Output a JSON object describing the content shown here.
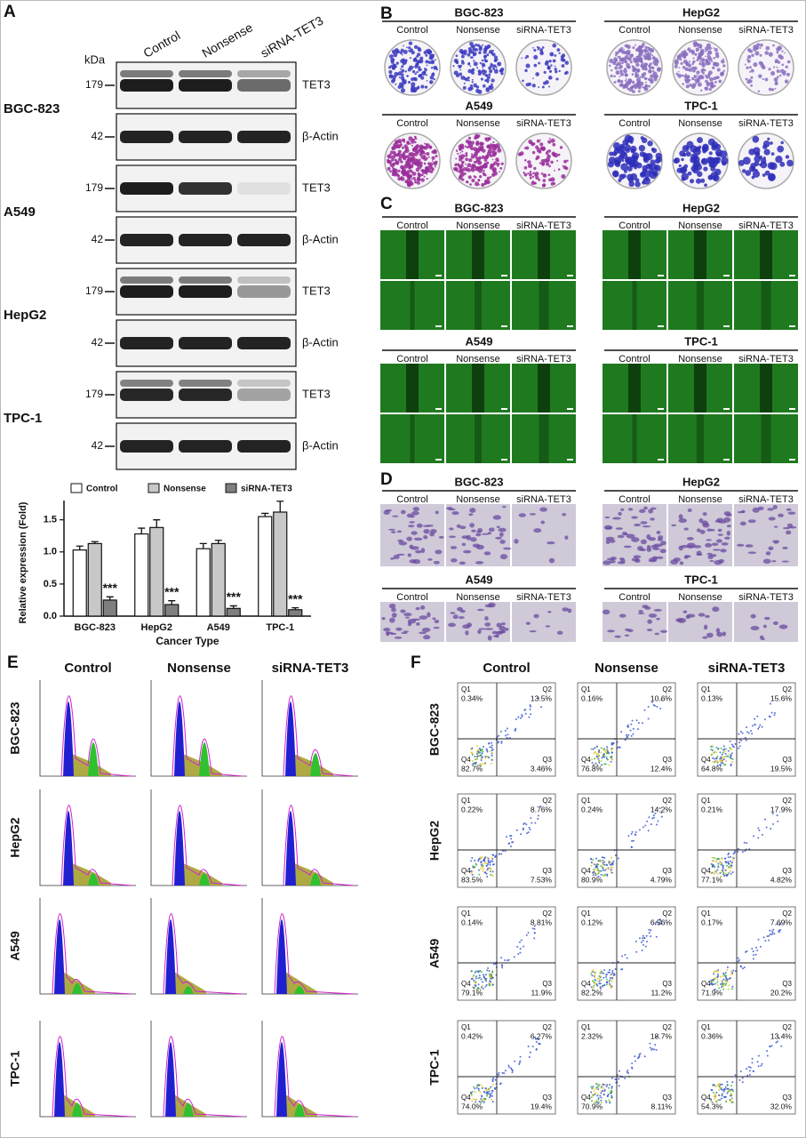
{
  "panel_labels": [
    "A",
    "B",
    "C",
    "D",
    "E",
    "F"
  ],
  "western_blot": {
    "kda_label": "kDa",
    "lanes": [
      "Control",
      "Nonsense",
      "siRNA-TET3"
    ],
    "rows": [
      {
        "cell_line": "BGC-823",
        "blots": [
          {
            "marker": "179",
            "protein": "TET3"
          },
          {
            "marker": "42",
            "protein": "β-Actin"
          }
        ]
      },
      {
        "cell_line": "A549",
        "blots": [
          {
            "marker": "179",
            "protein": "TET3"
          },
          {
            "marker": "42",
            "protein": "β-Actin"
          }
        ]
      },
      {
        "cell_line": "HepG2",
        "blots": [
          {
            "marker": "179",
            "protein": "TET3"
          },
          {
            "marker": "42",
            "protein": "β-Actin"
          }
        ]
      },
      {
        "cell_line": "TPC-1",
        "blots": [
          {
            "marker": "179",
            "protein": "TET3"
          },
          {
            "marker": "42",
            "protein": "β-Actin"
          }
        ]
      }
    ]
  },
  "chart_data": {
    "type": "bar",
    "y_label": "Relative expression (Fold)",
    "x_label": "Cancer Type",
    "categories": [
      "BGC-823",
      "HepG2",
      "A549",
      "TPC-1"
    ],
    "series": [
      {
        "name": "Control",
        "color": "#ffffff",
        "values": [
          1.03,
          1.28,
          1.05,
          1.55
        ],
        "errors": [
          0.06,
          0.09,
          0.08,
          0.05
        ]
      },
      {
        "name": "Nonsense",
        "color": "#c8c8c8",
        "values": [
          1.13,
          1.38,
          1.13,
          1.62
        ],
        "errors": [
          0.03,
          0.12,
          0.05,
          0.17
        ]
      },
      {
        "name": "siRNA-TET3",
        "color": "#7f7f7f",
        "values": [
          0.25,
          0.18,
          0.12,
          0.1
        ],
        "errors": [
          0.05,
          0.06,
          0.04,
          0.03
        ]
      }
    ],
    "annotations": [
      "***",
      "***",
      "***",
      "***"
    ],
    "ylim": [
      0,
      1.8
    ],
    "yticks": [
      {
        "value": 0,
        "label": "0.0"
      },
      0.5,
      {
        "value": 1,
        "label": "1.0"
      },
      1.5
    ],
    "legend": "top"
  },
  "colony_formation": {
    "groups": [
      {
        "cell_line": "BGC-823",
        "columns": [
          "Control",
          "Nonsense",
          "siRNA-TET3"
        ]
      },
      {
        "cell_line": "HepG2",
        "columns": [
          "Control",
          "Nonsense",
          "siRNA-TET3"
        ]
      },
      {
        "cell_line": "A549",
        "columns": [
          "Control",
          "Nonsense",
          "siRNA-TET3"
        ]
      },
      {
        "cell_line": "TPC-1",
        "columns": [
          "Control",
          "Nonsense",
          "siRNA-TET3"
        ]
      }
    ]
  },
  "wound_healing": {
    "groups": [
      {
        "cell_line": "BGC-823",
        "columns": [
          "Control",
          "Nonsense",
          "siRNA-TET3"
        ]
      },
      {
        "cell_line": "HepG2",
        "columns": [
          "Control",
          "Nonsense",
          "siRNA-TET3"
        ]
      },
      {
        "cell_line": "A549",
        "columns": [
          "Control",
          "Nonsense",
          "siRNA-TET3"
        ]
      },
      {
        "cell_line": "TPC-1",
        "columns": [
          "Control",
          "Nonsense",
          "siRNA-TET3"
        ]
      }
    ]
  },
  "transwell": {
    "groups": [
      {
        "cell_line": "BGC-823",
        "columns": [
          "Control",
          "Nonsense",
          "siRNA-TET3"
        ]
      },
      {
        "cell_line": "HepG2",
        "columns": [
          "Control",
          "Nonsense",
          "siRNA-TET3"
        ]
      },
      {
        "cell_line": "A549",
        "columns": [
          "Control",
          "Nonsense",
          "siRNA-TET3"
        ]
      },
      {
        "cell_line": "TPC-1",
        "columns": [
          "Control",
          "Nonsense",
          "siRNA-TET3"
        ]
      }
    ]
  },
  "cell_cycle": {
    "columns": [
      "Control",
      "Nonsense",
      "siRNA-TET3"
    ],
    "rows": [
      "BGC-823",
      "HepG2",
      "A549",
      "TPC-1"
    ]
  },
  "apoptosis": {
    "columns": [
      "Control",
      "Nonsense",
      "siRNA-TET3"
    ],
    "quadrant_names": [
      "Q1",
      "Q2",
      "Q3",
      "Q4"
    ],
    "rows": [
      {
        "cell_line": "BGC-823",
        "plots": [
          [
            "0.34%",
            "13.5%",
            "3.46%",
            "82.7%"
          ],
          [
            "0.16%",
            "10.6%",
            "12.4%",
            "76.8%"
          ],
          [
            "0.13%",
            "15.6%",
            "19.5%",
            "64.8%"
          ]
        ]
      },
      {
        "cell_line": "HepG2",
        "plots": [
          [
            "0.22%",
            "8.76%",
            "7.53%",
            "83.5%"
          ],
          [
            "0.24%",
            "14.2%",
            "4.79%",
            "80.9%"
          ],
          [
            "0.21%",
            "17.9%",
            "4.82%",
            "77.1%"
          ]
        ]
      },
      {
        "cell_line": "A549",
        "plots": [
          [
            "0.14%",
            "8.81%",
            "11.9%",
            "79.1%"
          ],
          [
            "0.12%",
            "6.56%",
            "11.2%",
            "82.2%"
          ],
          [
            "0.17%",
            "7.69%",
            "20.2%",
            "71.9%"
          ]
        ]
      },
      {
        "cell_line": "TPC-1",
        "plots": [
          [
            "0.42%",
            "6.27%",
            "19.4%",
            "74.0%"
          ],
          [
            "2.32%",
            "18.7%",
            "8.11%",
            "70.9%"
          ],
          [
            "0.36%",
            "13.4%",
            "32.0%",
            "54.3%"
          ]
        ]
      }
    ]
  }
}
